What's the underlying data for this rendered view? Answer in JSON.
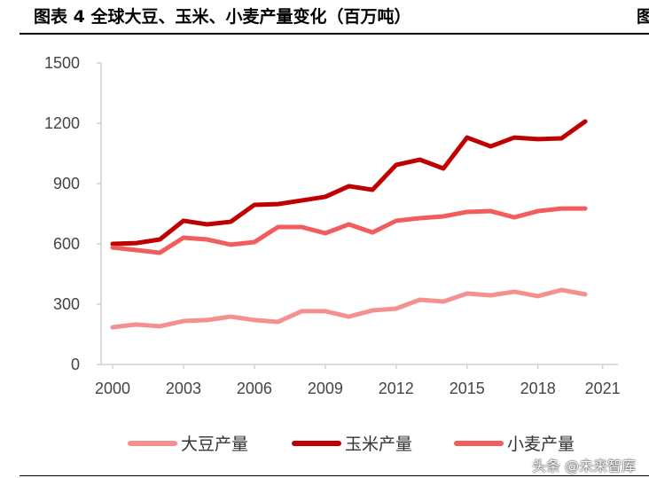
{
  "title": "图表 4  全球大豆、玉米、小麦产量变化（百万吨）",
  "title_cut": "图",
  "watermark": "头条 @未来智库",
  "chart_data": {
    "type": "line",
    "title": "图表 4  全球大豆、玉米、小麦产量变化（百万吨）",
    "x": [
      2000,
      2001,
      2002,
      2003,
      2004,
      2005,
      2006,
      2007,
      2008,
      2009,
      2010,
      2011,
      2012,
      2013,
      2014,
      2015,
      2016,
      2017,
      2018,
      2019,
      2020
    ],
    "x_ticks": [
      "2000",
      "2003",
      "2006",
      "2009",
      "2012",
      "2015",
      "2018",
      "2021"
    ],
    "y_ticks": [
      "0",
      "300",
      "600",
      "900",
      "1200",
      "1500"
    ],
    "ylim": [
      0,
      1500
    ],
    "xlim": [
      2000,
      2021
    ],
    "grid": false,
    "legend_placement": "bottom",
    "series": [
      {
        "name": "大豆产量",
        "color": "#f59090",
        "values": [
          185,
          199,
          190,
          216,
          221,
          238,
          221,
          212,
          265,
          265,
          238,
          269,
          278,
          322,
          313,
          353,
          344,
          362,
          340,
          371,
          349
        ]
      },
      {
        "name": "玉米产量",
        "color": "#c00000",
        "values": [
          600,
          604,
          622,
          715,
          697,
          710,
          794,
          798,
          816,
          834,
          887,
          869,
          993,
          1019,
          975,
          1129,
          1085,
          1129,
          1121,
          1125,
          1209
        ]
      },
      {
        "name": "小麦产量",
        "color": "#f25c5c",
        "values": [
          582,
          569,
          556,
          631,
          622,
          596,
          609,
          684,
          684,
          653,
          697,
          657,
          715,
          728,
          737,
          759,
          763,
          732,
          763,
          776,
          776
        ]
      }
    ]
  }
}
